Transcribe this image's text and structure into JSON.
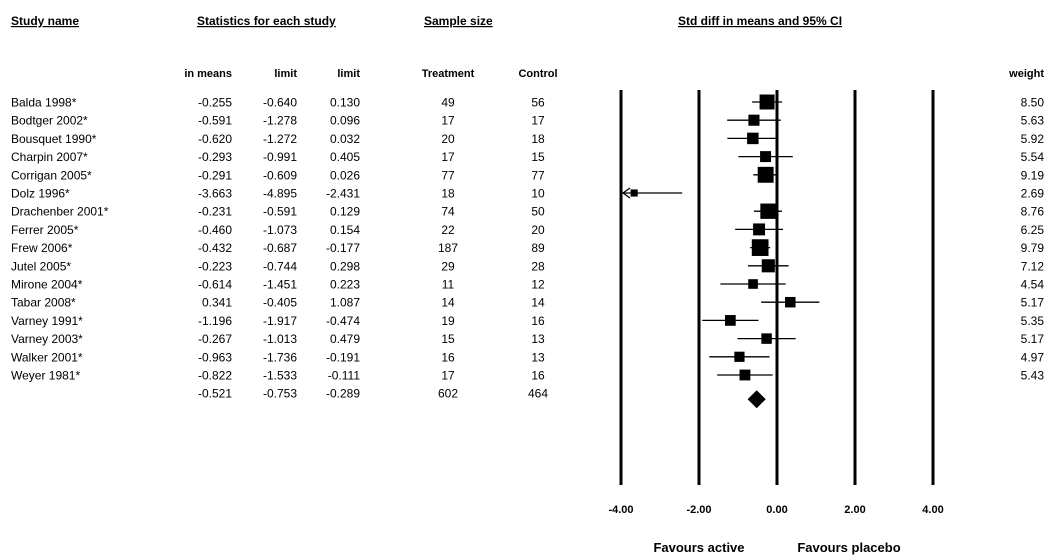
{
  "headers": {
    "study_name": "Study name",
    "statistics": "Statistics for each study",
    "sample_size": "Sample size",
    "ci": "Std diff in means and 95% CI"
  },
  "subheaders": {
    "means": "in means",
    "lower": "limit",
    "upper": "limit",
    "treatment": "Treatment",
    "control": "Control",
    "weight": "weight"
  },
  "favours": {
    "left": "Favours active",
    "right": "Favours placebo"
  },
  "chart_data": {
    "type": "forest",
    "x_ticks": [
      "-4.00",
      "-2.00",
      "0.00",
      "2.00",
      "4.00"
    ],
    "x_tick_values": [
      -4,
      -2,
      0,
      2,
      4
    ],
    "xlim": [
      -4,
      4
    ],
    "studies": [
      {
        "name": "Balda 1998*",
        "std_diff": "-0.255",
        "lower": "-0.640",
        "upper": "0.130",
        "treatment": "49",
        "control": "56",
        "weight": "8.50"
      },
      {
        "name": "Bodtger 2002*",
        "std_diff": "-0.591",
        "lower": "-1.278",
        "upper": "0.096",
        "treatment": "17",
        "control": "17",
        "weight": "5.63"
      },
      {
        "name": "Bousquet 1990*",
        "std_diff": "-0.620",
        "lower": "-1.272",
        "upper": "0.032",
        "treatment": "20",
        "control": "18",
        "weight": "5.92"
      },
      {
        "name": "Charpin 2007*",
        "std_diff": "-0.293",
        "lower": "-0.991",
        "upper": "0.405",
        "treatment": "17",
        "control": "15",
        "weight": "5.54"
      },
      {
        "name": "Corrigan 2005*",
        "std_diff": "-0.291",
        "lower": "-0.609",
        "upper": "0.026",
        "treatment": "77",
        "control": "77",
        "weight": "9.19"
      },
      {
        "name": "Dolz 1996*",
        "std_diff": "-3.663",
        "lower": "-4.895",
        "upper": "-2.431",
        "treatment": "18",
        "control": "10",
        "weight": "2.69"
      },
      {
        "name": "Drachenber 2001*",
        "std_diff": "-0.231",
        "lower": "-0.591",
        "upper": "0.129",
        "treatment": "74",
        "control": "50",
        "weight": "8.76"
      },
      {
        "name": "Ferrer 2005*",
        "std_diff": "-0.460",
        "lower": "-1.073",
        "upper": "0.154",
        "treatment": "22",
        "control": "20",
        "weight": "6.25"
      },
      {
        "name": "Frew 2006*",
        "std_diff": "-0.432",
        "lower": "-0.687",
        "upper": "-0.177",
        "treatment": "187",
        "control": "89",
        "weight": "9.79"
      },
      {
        "name": "Jutel 2005*",
        "std_diff": "-0.223",
        "lower": "-0.744",
        "upper": "0.298",
        "treatment": "29",
        "control": "28",
        "weight": "7.12"
      },
      {
        "name": "Mirone 2004*",
        "std_diff": "-0.614",
        "lower": "-1.451",
        "upper": "0.223",
        "treatment": "11",
        "control": "12",
        "weight": "4.54"
      },
      {
        "name": "Tabar 2008*",
        "std_diff": "0.341",
        "lower": "-0.405",
        "upper": "1.087",
        "treatment": "14",
        "control": "14",
        "weight": "5.17"
      },
      {
        "name": "Varney 1991*",
        "std_diff": "-1.196",
        "lower": "-1.917",
        "upper": "-0.474",
        "treatment": "19",
        "control": "16",
        "weight": "5.35"
      },
      {
        "name": "Varney 2003*",
        "std_diff": "-0.267",
        "lower": "-1.013",
        "upper": "0.479",
        "treatment": "15",
        "control": "13",
        "weight": "5.17"
      },
      {
        "name": "Walker 2001*",
        "std_diff": "-0.963",
        "lower": "-1.736",
        "upper": "-0.191",
        "treatment": "16",
        "control": "13",
        "weight": "4.97"
      },
      {
        "name": "Weyer 1981*",
        "std_diff": "-0.822",
        "lower": "-1.533",
        "upper": "-0.111",
        "treatment": "17",
        "control": "16",
        "weight": "5.43"
      }
    ],
    "summary": {
      "std_diff": "-0.521",
      "lower": "-0.753",
      "upper": "-0.289",
      "treatment": "602",
      "control": "464"
    }
  }
}
